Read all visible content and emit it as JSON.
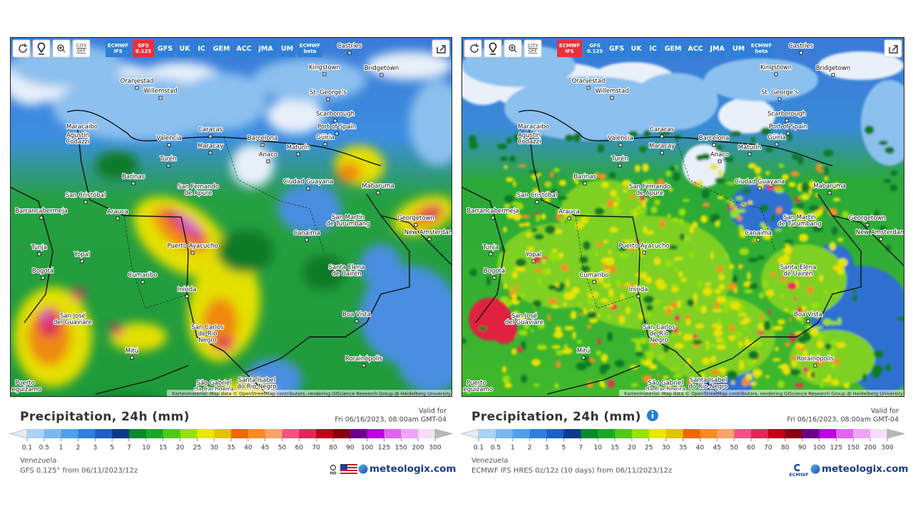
{
  "models": [
    [
      "ECMWF",
      "IFS"
    ],
    [
      "GFS",
      "0.125"
    ],
    [
      "GFS"
    ],
    [
      "UK"
    ],
    [
      "IC"
    ],
    [
      "GEM"
    ],
    [
      "ACC"
    ],
    [
      "JMA"
    ],
    [
      "UM"
    ],
    [
      "ECMWF",
      "beta"
    ]
  ],
  "city_toggle": [
    "CITY",
    "OFF"
  ],
  "attribution": "Kartenmaterial: Map data © OpenStreetMap contributors, rendering GIScience Research Group @ Heidelberg University",
  "title": "Precipitation, 24h (mm)",
  "valid_label": "Valid for",
  "valid_time": "Fri 06/16/2023, 08:00am GMT-04",
  "region": "Venezuela",
  "brand": "meteologix.com",
  "cities": [
    [
      "Castries"
    ],
    [
      "Kingstown"
    ],
    [
      "Bridgetown"
    ],
    [
      "Oranjestad"
    ],
    [
      "Willemstad"
    ],
    [
      "St. George's"
    ],
    [
      "Scarborough"
    ],
    [
      "Maracaibo"
    ],
    [
      "Caracas"
    ],
    [
      "Port of Spain"
    ],
    [
      "Valencia"
    ],
    [
      "Maracay"
    ],
    [
      "Barcelona"
    ],
    [
      "Maturín"
    ],
    [
      "Anaco"
    ],
    [
      "Barinas"
    ],
    [
      "San Cristóbal"
    ],
    [
      "San Fernando",
      "de Apure"
    ],
    [
      "Ciudad Guayana"
    ],
    [
      "Mabaruma"
    ],
    [
      "Barrancabermeja"
    ],
    [
      "Arauca"
    ],
    [
      "San Martín",
      "de Turumbang"
    ],
    [
      "Georgetown"
    ],
    [
      "New Amsterdam"
    ],
    [
      "Canaima"
    ],
    [
      "Tunja"
    ],
    [
      "Yopal"
    ],
    [
      "Puerto Ayacucho"
    ],
    [
      "Santa Elena",
      "de Uairén"
    ],
    [
      "Bogotá"
    ],
    [
      "Cumaribo"
    ],
    [
      "Inírida"
    ],
    [
      "Boa Vista"
    ],
    [
      "San José",
      "del Guaviare"
    ],
    [
      "San Carlos",
      "de Río",
      "Negro"
    ],
    [
      "Mitú"
    ],
    [
      "Rorainópolis"
    ],
    [
      "São Gabriel",
      "da Cachoeira"
    ],
    [
      "Santa Isabel",
      "do Rio Negro"
    ],
    [
      "Puerto",
      "Leguízamo"
    ],
    [
      "Agustín",
      "Codazzi"
    ],
    [
      "Turén"
    ],
    [
      "Güiria"
    ]
  ],
  "legend": {
    "labels": [
      0.1,
      0.5,
      1,
      2,
      3,
      5,
      7,
      10,
      15,
      20,
      25,
      30,
      35,
      40,
      45,
      50,
      60,
      70,
      80,
      90,
      100,
      125,
      150,
      200,
      300
    ],
    "colors": [
      "#e4ecf4",
      "#a8d2f6",
      "#7cb8f0",
      "#50a0e8",
      "#2e80dc",
      "#1c60c8",
      "#0e3a8c",
      "#0a8a2a",
      "#18a828",
      "#50c818",
      "#98e010",
      "#e8e800",
      "#e0c400",
      "#f06800",
      "#f88a24",
      "#f8a468",
      "#f05484",
      "#e02858",
      "#c00018",
      "#880010",
      "#6a0088",
      "#c000e0",
      "#e064f0",
      "#f0a4f8",
      "#f8dcf8",
      "#b8b8b8"
    ]
  },
  "panels": [
    {
      "active_model": 1,
      "source": "GFS 0.125° from 06/11/2023/12z",
      "badge": "HD",
      "style": "smooth"
    },
    {
      "active_model": 0,
      "source": "ECMWF IFS HRES 0z/12z (10 days) from 06/11/2023/12z",
      "partner": "ECMWF",
      "info_icon": true,
      "style": "speckled"
    }
  ]
}
